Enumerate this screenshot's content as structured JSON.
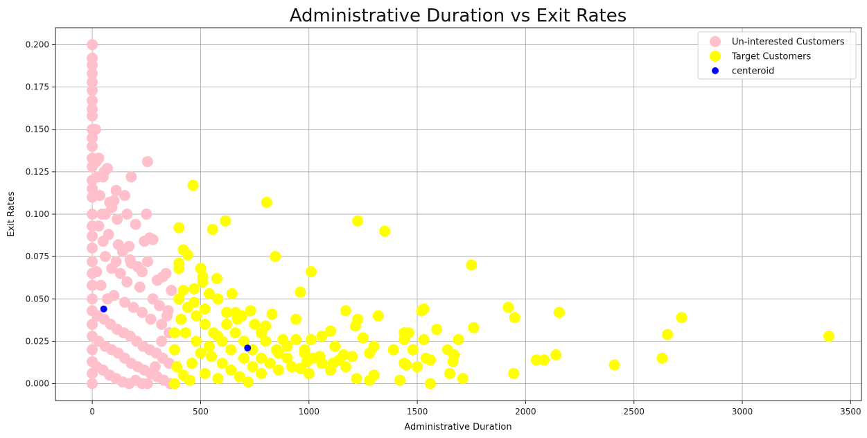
{
  "chart_data": {
    "type": "scatter",
    "title": "Administrative Duration vs Exit Rates",
    "xlabel": "Administrative Duration",
    "ylabel": "Exit Rates",
    "xlim": [
      -170,
      3550
    ],
    "ylim": [
      -0.01,
      0.21
    ],
    "xticks": [
      "0",
      "500",
      "1000",
      "1500",
      "2000",
      "2500",
      "3000",
      "3500"
    ],
    "xtick_values": [
      0,
      500,
      1000,
      1500,
      2000,
      2500,
      3000,
      3500
    ],
    "yticks": [
      "0.000",
      "0.025",
      "0.050",
      "0.075",
      "0.100",
      "0.125",
      "0.150",
      "0.175",
      "0.200"
    ],
    "ytick_values": [
      0,
      0.025,
      0.05,
      0.075,
      0.1,
      0.125,
      0.15,
      0.175,
      0.2
    ],
    "grid": true,
    "legend_position": "top-right",
    "series": [
      {
        "name": "Un-interested Customers",
        "color": "#ffc0cb",
        "marker_size": "large",
        "points": [
          [
            0,
            0.2
          ],
          [
            0,
            0.192
          ],
          [
            0,
            0.188
          ],
          [
            0,
            0.183
          ],
          [
            0,
            0.178
          ],
          [
            0,
            0.173
          ],
          [
            0,
            0.167
          ],
          [
            0,
            0.162
          ],
          [
            0,
            0.158
          ],
          [
            0,
            0.15
          ],
          [
            0,
            0.145
          ],
          [
            0,
            0.14
          ],
          [
            0,
            0.133
          ],
          [
            0,
            0.128
          ],
          [
            0,
            0.12
          ],
          [
            0,
            0.115
          ],
          [
            0,
            0.11
          ],
          [
            0,
            0.1
          ],
          [
            0,
            0.093
          ],
          [
            0,
            0.087
          ],
          [
            0,
            0.08
          ],
          [
            0,
            0.072
          ],
          [
            0,
            0.065
          ],
          [
            0,
            0.058
          ],
          [
            0,
            0.05
          ],
          [
            0,
            0.043
          ],
          [
            0,
            0.035
          ],
          [
            0,
            0.028
          ],
          [
            0,
            0.02
          ],
          [
            0,
            0.013
          ],
          [
            0,
            0.006
          ],
          [
            0,
            0.0
          ],
          [
            15,
            0.15
          ],
          [
            18,
            0.131
          ],
          [
            30,
            0.133
          ],
          [
            25,
            0.122
          ],
          [
            35,
            0.111
          ],
          [
            70,
            0.127
          ],
          [
            55,
            0.125
          ],
          [
            50,
            0.122
          ],
          [
            110,
            0.114
          ],
          [
            150,
            0.111
          ],
          [
            180,
            0.122
          ],
          [
            255,
            0.131
          ],
          [
            45,
            0.1
          ],
          [
            60,
            0.1
          ],
          [
            80,
            0.107
          ],
          [
            90,
            0.104
          ],
          [
            100,
            0.108
          ],
          [
            115,
            0.097
          ],
          [
            160,
            0.1
          ],
          [
            200,
            0.094
          ],
          [
            250,
            0.1
          ],
          [
            240,
            0.084
          ],
          [
            265,
            0.086
          ],
          [
            280,
            0.085
          ],
          [
            30,
            0.093
          ],
          [
            75,
            0.088
          ],
          [
            120,
            0.082
          ],
          [
            170,
            0.081
          ],
          [
            175,
            0.073
          ],
          [
            255,
            0.072
          ],
          [
            325,
            0.063
          ],
          [
            340,
            0.065
          ],
          [
            365,
            0.055
          ],
          [
            210,
            0.069
          ],
          [
            230,
            0.066
          ],
          [
            300,
            0.061
          ],
          [
            50,
            0.084
          ],
          [
            140,
            0.078
          ],
          [
            180,
            0.071
          ],
          [
            60,
            0.075
          ],
          [
            90,
            0.068
          ],
          [
            110,
            0.072
          ],
          [
            130,
            0.065
          ],
          [
            160,
            0.06
          ],
          [
            220,
            0.057
          ],
          [
            280,
            0.05
          ],
          [
            310,
            0.046
          ],
          [
            350,
            0.043
          ],
          [
            20,
            0.066
          ],
          [
            40,
            0.058
          ],
          [
            70,
            0.05
          ],
          [
            100,
            0.052
          ],
          [
            150,
            0.048
          ],
          [
            190,
            0.045
          ],
          [
            230,
            0.042
          ],
          [
            270,
            0.038
          ],
          [
            320,
            0.035
          ],
          [
            355,
            0.03
          ],
          [
            25,
            0.04
          ],
          [
            55,
            0.038
          ],
          [
            85,
            0.035
          ],
          [
            115,
            0.032
          ],
          [
            145,
            0.03
          ],
          [
            175,
            0.028
          ],
          [
            205,
            0.025
          ],
          [
            235,
            0.022
          ],
          [
            265,
            0.02
          ],
          [
            295,
            0.018
          ],
          [
            325,
            0.015
          ],
          [
            355,
            0.012
          ],
          [
            30,
            0.025
          ],
          [
            60,
            0.022
          ],
          [
            90,
            0.02
          ],
          [
            120,
            0.018
          ],
          [
            150,
            0.015
          ],
          [
            180,
            0.012
          ],
          [
            210,
            0.01
          ],
          [
            240,
            0.008
          ],
          [
            270,
            0.006
          ],
          [
            300,
            0.004
          ],
          [
            330,
            0.002
          ],
          [
            360,
            0.0
          ],
          [
            20,
            0.01
          ],
          [
            50,
            0.008
          ],
          [
            80,
            0.005
          ],
          [
            110,
            0.003
          ],
          [
            140,
            0.001
          ],
          [
            170,
            0.0
          ],
          [
            200,
            0.002
          ],
          [
            230,
            0.0
          ],
          [
            255,
            0.0
          ],
          [
            290,
            0.01
          ],
          [
            320,
            0.025
          ],
          [
            345,
            0.04
          ]
        ]
      },
      {
        "name": "Target Customers",
        "color": "#ffff00",
        "marker_size": "large",
        "points": [
          [
            465,
            0.117
          ],
          [
            400,
            0.092
          ],
          [
            555,
            0.091
          ],
          [
            615,
            0.096
          ],
          [
            805,
            0.107
          ],
          [
            1225,
            0.096
          ],
          [
            1350,
            0.09
          ],
          [
            420,
            0.079
          ],
          [
            440,
            0.076
          ],
          [
            400,
            0.071
          ],
          [
            845,
            0.075
          ],
          [
            1750,
            0.07
          ],
          [
            500,
            0.068
          ],
          [
            400,
            0.068
          ],
          [
            1010,
            0.066
          ],
          [
            510,
            0.063
          ],
          [
            510,
            0.06
          ],
          [
            575,
            0.062
          ],
          [
            960,
            0.054
          ],
          [
            420,
            0.055
          ],
          [
            470,
            0.056
          ],
          [
            540,
            0.053
          ],
          [
            645,
            0.053
          ],
          [
            580,
            0.05
          ],
          [
            660,
            0.042
          ],
          [
            690,
            0.04
          ],
          [
            730,
            0.043
          ],
          [
            830,
            0.041
          ],
          [
            1170,
            0.043
          ],
          [
            1225,
            0.038
          ],
          [
            1320,
            0.04
          ],
          [
            1530,
            0.044
          ],
          [
            1520,
            0.043
          ],
          [
            1920,
            0.045
          ],
          [
            1950,
            0.039
          ],
          [
            2155,
            0.042
          ],
          [
            2720,
            0.039
          ],
          [
            2655,
            0.029
          ],
          [
            3400,
            0.028
          ],
          [
            1760,
            0.033
          ],
          [
            1215,
            0.034
          ],
          [
            1590,
            0.032
          ],
          [
            1440,
            0.03
          ],
          [
            1460,
            0.03
          ],
          [
            1250,
            0.027
          ],
          [
            1530,
            0.026
          ],
          [
            1690,
            0.026
          ],
          [
            1390,
            0.02
          ],
          [
            1440,
            0.026
          ],
          [
            1480,
            0.02
          ],
          [
            1640,
            0.02
          ],
          [
            1670,
            0.017
          ],
          [
            1300,
            0.022
          ],
          [
            1280,
            0.018
          ],
          [
            1200,
            0.016
          ],
          [
            1100,
            0.031
          ],
          [
            1060,
            0.028
          ],
          [
            1120,
            0.022
          ],
          [
            1160,
            0.017
          ],
          [
            1110,
            0.012
          ],
          [
            1170,
            0.01
          ],
          [
            1010,
            0.026
          ],
          [
            980,
            0.02
          ],
          [
            940,
            0.038
          ],
          [
            1050,
            0.016
          ],
          [
            990,
            0.013
          ],
          [
            960,
            0.009
          ],
          [
            1000,
            0.006
          ],
          [
            1220,
            0.003
          ],
          [
            1280,
            0.002
          ],
          [
            1300,
            0.005
          ],
          [
            1420,
            0.002
          ],
          [
            1440,
            0.012
          ],
          [
            1450,
            0.011
          ],
          [
            1500,
            0.01
          ],
          [
            1540,
            0.015
          ],
          [
            1560,
            0.014
          ],
          [
            1650,
            0.006
          ],
          [
            1560,
            0.0
          ],
          [
            1665,
            0.013
          ],
          [
            1710,
            0.003
          ],
          [
            1945,
            0.006
          ],
          [
            2050,
            0.014
          ],
          [
            2085,
            0.014
          ],
          [
            2140,
            0.017
          ],
          [
            2410,
            0.011
          ],
          [
            2630,
            0.015
          ],
          [
            720,
            0.001
          ],
          [
            700,
            0.015
          ],
          [
            780,
            0.03
          ],
          [
            800,
            0.025
          ],
          [
            850,
            0.02
          ],
          [
            880,
            0.026
          ],
          [
            900,
            0.015
          ],
          [
            920,
            0.01
          ],
          [
            860,
            0.008
          ],
          [
            780,
            0.006
          ],
          [
            740,
            0.01
          ],
          [
            640,
            0.02
          ],
          [
            600,
            0.025
          ],
          [
            560,
            0.03
          ],
          [
            520,
            0.035
          ],
          [
            480,
            0.04
          ],
          [
            440,
            0.045
          ],
          [
            400,
            0.05
          ],
          [
            380,
            0.03
          ],
          [
            380,
            0.02
          ],
          [
            390,
            0.01
          ],
          [
            380,
            0.0
          ],
          [
            420,
            0.005
          ],
          [
            460,
            0.012
          ],
          [
            500,
            0.018
          ],
          [
            540,
            0.022
          ],
          [
            580,
            0.028
          ],
          [
            620,
            0.035
          ],
          [
            660,
            0.03
          ],
          [
            700,
            0.025
          ],
          [
            740,
            0.02
          ],
          [
            780,
            0.015
          ],
          [
            820,
            0.012
          ],
          [
            860,
            0.018
          ],
          [
            900,
            0.022
          ],
          [
            940,
            0.026
          ],
          [
            980,
            0.018
          ],
          [
            1020,
            0.015
          ],
          [
            1060,
            0.012
          ],
          [
            1100,
            0.008
          ],
          [
            1140,
            0.014
          ],
          [
            450,
            0.002
          ],
          [
            520,
            0.006
          ],
          [
            580,
            0.003
          ],
          [
            640,
            0.008
          ],
          [
            680,
            0.004
          ],
          [
            600,
            0.012
          ],
          [
            550,
            0.016
          ],
          [
            480,
            0.025
          ],
          [
            430,
            0.03
          ],
          [
            410,
            0.038
          ],
          [
            470,
            0.048
          ],
          [
            520,
            0.044
          ],
          [
            620,
            0.042
          ],
          [
            670,
            0.038
          ],
          [
            750,
            0.035
          ],
          [
            800,
            0.034
          ]
        ]
      },
      {
        "name": "centeroid",
        "color": "#0000ff",
        "marker_size": "small",
        "points": [
          [
            53,
            0.044
          ],
          [
            717,
            0.021
          ]
        ]
      }
    ]
  }
}
